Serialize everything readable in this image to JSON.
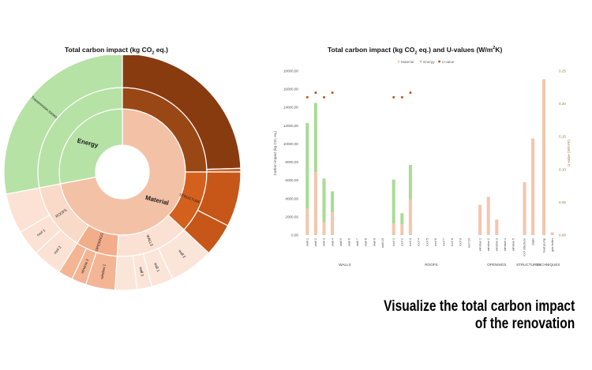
{
  "sunburst": {
    "title_main": "Total carbon impact (kg CO",
    "title_sub": "2",
    "title_end": " eq.)",
    "chart_data": {
      "type": "sunburst",
      "inner": [
        {
          "label": "Material",
          "value": 72,
          "color": "#f3c2a6"
        },
        {
          "label": "Energy",
          "value": 28,
          "color": "#b6e2a6"
        }
      ],
      "middle": [
        {
          "label": "",
          "value": 25,
          "color": "#9a4716",
          "parent": "Material"
        },
        {
          "label": "STRUCTURES",
          "value": 12,
          "color": "#d4601e",
          "parent": "Material"
        },
        {
          "label": "WALLS",
          "value": 14,
          "color": "#fbe1d3",
          "parent": "Material"
        },
        {
          "label": "OPENINGS",
          "value": 8,
          "color": "#f2ad8a",
          "parent": "Material"
        },
        {
          "label": "ROOFS",
          "value": 13,
          "color": "#f9d9c8",
          "parent": "Material"
        },
        {
          "label": "",
          "value": 28,
          "color": "#b6e2a6",
          "parent": "Energy"
        }
      ],
      "outer": [
        {
          "label": "",
          "value": 24.5,
          "color": "#893b10"
        },
        {
          "label": "",
          "value": 0.5,
          "color": "#c9652f"
        },
        {
          "label": "",
          "value": 7.5,
          "color": "#c65719"
        },
        {
          "label": "",
          "value": 4.5,
          "color": "#c65719"
        },
        {
          "label": "wall 2",
          "value": 6,
          "color": "#fbe5d9"
        },
        {
          "label": "wall 1",
          "value": 3,
          "color": "#fbe5d9"
        },
        {
          "label": "wall 3",
          "value": 2,
          "color": "#fbe5d9"
        },
        {
          "label": "",
          "value": 3,
          "color": "#fbe5d9"
        },
        {
          "label": "window 1",
          "value": 4,
          "color": "#f3b594"
        },
        {
          "label": "window 2",
          "value": 2,
          "color": "#f3b594"
        },
        {
          "label": "",
          "value": 2,
          "color": "#f3b594"
        },
        {
          "label": "roof 2",
          "value": 4,
          "color": "#fbe2d4"
        },
        {
          "label": "roof 1",
          "value": 3.5,
          "color": "#fbe2d4"
        },
        {
          "label": "",
          "value": 5.5,
          "color": "#fbe2d4"
        },
        {
          "label": "Transmission losses",
          "value": 28,
          "color": "#b6e2a6"
        }
      ]
    }
  },
  "bar": {
    "title_main": "Total carbon impact (kg CO",
    "title_sub": "2",
    "title_mid": " eq.) and U-values (W/m",
    "title_sup": "2",
    "title_end": "K)",
    "legend": [
      {
        "label": "Material",
        "color": "#f3c6ad"
      },
      {
        "label": "Energy",
        "color": "#a8dc95"
      },
      {
        "label": "U-value",
        "color": "#c0531a"
      }
    ],
    "y_axis_label": "Carbon impact (kg CO₂ eq.)",
    "y2_axis_label": "U-value (W/m²K)",
    "y_ticks": [
      "0,00",
      "2000,00",
      "4000,00",
      "6000,00",
      "8000,00",
      "10000,00",
      "12000,00",
      "14000,00",
      "16000,00",
      "18000,00"
    ],
    "y2_ticks": [
      "0,00",
      "0,05",
      "0,10",
      "0,15",
      "0,20",
      "0,25"
    ],
    "chart_data": {
      "type": "bar",
      "ylim": [
        0,
        18000
      ],
      "y2lim": [
        0,
        0.25
      ],
      "groups": [
        {
          "label": "WALLS",
          "categories": [
            {
              "name": "wall 1",
              "material": 2900,
              "energy": 9400,
              "u": 0.21
            },
            {
              "name": "wall 2",
              "material": 6900,
              "energy": 7600,
              "u": 0.217
            },
            {
              "name": "wall 3",
              "material": 1400,
              "energy": 4800,
              "u": 0.21
            },
            {
              "name": "wall 4",
              "material": 2500,
              "energy": 2300,
              "u": 0.217
            },
            {
              "name": "wall 5",
              "material": 0,
              "energy": 0,
              "u": null
            },
            {
              "name": "wall 6",
              "material": 0,
              "energy": 0,
              "u": null
            },
            {
              "name": "wall 7",
              "material": 0,
              "energy": 0,
              "u": null
            },
            {
              "name": "wall 8",
              "material": 0,
              "energy": 0,
              "u": null
            },
            {
              "name": "wall 9",
              "material": 0,
              "energy": 0,
              "u": null
            },
            {
              "name": "wall 10",
              "material": 0,
              "energy": 0,
              "u": null
            }
          ]
        },
        {
          "label": "ROOFS",
          "categories": [
            {
              "name": "roof 1",
              "material": 1300,
              "energy": 4800,
              "u": 0.21
            },
            {
              "name": "roof 2",
              "material": 1200,
              "energy": 1200,
              "u": 0.21
            },
            {
              "name": "roof 3",
              "material": 3900,
              "energy": 3800,
              "u": 0.217
            },
            {
              "name": "roof 4",
              "material": 0,
              "energy": 0,
              "u": null
            },
            {
              "name": "roof 5",
              "material": 0,
              "energy": 0,
              "u": null
            },
            {
              "name": "roof 6",
              "material": 0,
              "energy": 0,
              "u": null
            },
            {
              "name": "roof 7",
              "material": 0,
              "energy": 0,
              "u": null
            },
            {
              "name": "roof 8",
              "material": 0,
              "energy": 0,
              "u": null
            },
            {
              "name": "roof 9",
              "material": 0,
              "energy": 0,
              "u": null
            },
            {
              "name": "roof 10",
              "material": 0,
              "energy": 0,
              "u": null
            }
          ]
        },
        {
          "label": "OPENINGS",
          "categories": [
            {
              "name": "window 1",
              "material": 3300,
              "energy": 0,
              "u": null
            },
            {
              "name": "window 2",
              "material": 4200,
              "energy": 0,
              "u": null
            },
            {
              "name": "window 3",
              "material": 1700,
              "energy": 0,
              "u": null
            },
            {
              "name": "window 4",
              "material": 0,
              "energy": 0,
              "u": null
            },
            {
              "name": "window 5",
              "material": 0,
              "energy": 0,
              "u": null
            }
          ]
        },
        {
          "label": "STRUCTURES",
          "categories": [
            {
              "name": "roof structure",
              "material": 5800,
              "energy": 0,
              "u": null
            },
            {
              "name": "slabs",
              "material": 10600,
              "energy": 0,
              "u": null
            }
          ]
        },
        {
          "label": "TECHNIQUES",
          "categories": [
            {
              "name": "heat pump",
              "material": 17100,
              "energy": 0,
              "u": null
            },
            {
              "name": "gas boiler",
              "material": 300,
              "energy": 0,
              "u": null
            }
          ]
        }
      ]
    }
  },
  "headline": {
    "line1": "Visualize the total carbon impact",
    "line2": "of the renovation"
  }
}
